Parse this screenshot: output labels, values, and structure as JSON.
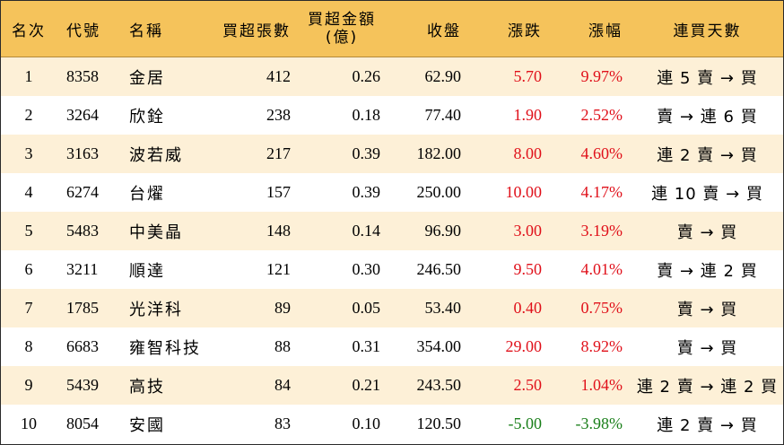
{
  "headers": {
    "rank": "名次",
    "code": "代號",
    "name": "名稱",
    "net_buy_lots": "買超張數",
    "net_buy_amount_line1": "買超金額",
    "net_buy_amount_line2": "(億)",
    "close": "收盤",
    "change": "漲跌",
    "change_pct": "漲幅",
    "consecutive_buy_days": "連買天數"
  },
  "colors": {
    "header_bg": "#f5c35b",
    "odd_row_bg": "#fdf0d7",
    "even_row_bg": "#ffffff",
    "up": "#e0101a",
    "down": "#1a7f1a"
  },
  "rows": [
    {
      "rank": "1",
      "code": "8358",
      "name": "金居",
      "lots": "412",
      "amount": "0.26",
      "close": "62.90",
      "change": "5.70",
      "pct": "9.97%",
      "days": "連 5 賣 → 買",
      "dir": "up"
    },
    {
      "rank": "2",
      "code": "3264",
      "name": "欣銓",
      "lots": "238",
      "amount": "0.18",
      "close": "77.40",
      "change": "1.90",
      "pct": "2.52%",
      "days": "賣 → 連 6 買",
      "dir": "up"
    },
    {
      "rank": "3",
      "code": "3163",
      "name": "波若威",
      "lots": "217",
      "amount": "0.39",
      "close": "182.00",
      "change": "8.00",
      "pct": "4.60%",
      "days": "連 2 賣 → 買",
      "dir": "up"
    },
    {
      "rank": "4",
      "code": "6274",
      "name": "台燿",
      "lots": "157",
      "amount": "0.39",
      "close": "250.00",
      "change": "10.00",
      "pct": "4.17%",
      "days": "連 10 賣 → 買",
      "dir": "up"
    },
    {
      "rank": "5",
      "code": "5483",
      "name": "中美晶",
      "lots": "148",
      "amount": "0.14",
      "close": "96.90",
      "change": "3.00",
      "pct": "3.19%",
      "days": "賣 → 買",
      "dir": "up"
    },
    {
      "rank": "6",
      "code": "3211",
      "name": "順達",
      "lots": "121",
      "amount": "0.30",
      "close": "246.50",
      "change": "9.50",
      "pct": "4.01%",
      "days": "賣 → 連 2 買",
      "dir": "up"
    },
    {
      "rank": "7",
      "code": "1785",
      "name": "光洋科",
      "lots": "89",
      "amount": "0.05",
      "close": "53.40",
      "change": "0.40",
      "pct": "0.75%",
      "days": "賣 → 買",
      "dir": "up"
    },
    {
      "rank": "8",
      "code": "6683",
      "name": "雍智科技",
      "lots": "88",
      "amount": "0.31",
      "close": "354.00",
      "change": "29.00",
      "pct": "8.92%",
      "days": "賣 → 買",
      "dir": "up"
    },
    {
      "rank": "9",
      "code": "5439",
      "name": "高技",
      "lots": "84",
      "amount": "0.21",
      "close": "243.50",
      "change": "2.50",
      "pct": "1.04%",
      "days": "連 2 賣 → 連 2 買",
      "dir": "up"
    },
    {
      "rank": "10",
      "code": "8054",
      "name": "安國",
      "lots": "83",
      "amount": "0.10",
      "close": "120.50",
      "change": "-5.00",
      "pct": "-3.98%",
      "days": "連 2 賣 → 買",
      "dir": "down"
    }
  ]
}
